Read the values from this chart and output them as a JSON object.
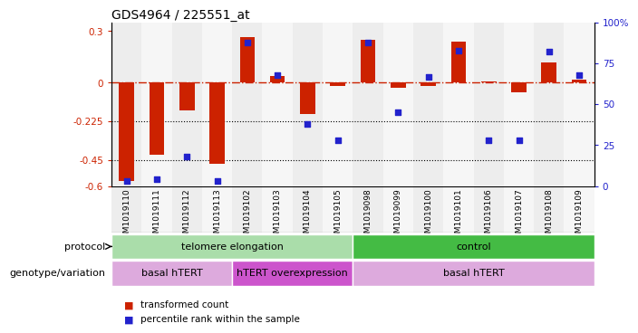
{
  "title": "GDS4964 / 225551_at",
  "samples": [
    "GSM1019110",
    "GSM1019111",
    "GSM1019112",
    "GSM1019113",
    "GSM1019102",
    "GSM1019103",
    "GSM1019104",
    "GSM1019105",
    "GSM1019098",
    "GSM1019099",
    "GSM1019100",
    "GSM1019101",
    "GSM1019106",
    "GSM1019107",
    "GSM1019108",
    "GSM1019109"
  ],
  "bar_values": [
    -0.57,
    -0.42,
    -0.16,
    -0.47,
    0.265,
    0.04,
    -0.18,
    -0.02,
    0.25,
    -0.03,
    -0.02,
    0.24,
    0.01,
    -0.055,
    0.12,
    0.02
  ],
  "scatter_values": [
    3,
    4,
    18,
    3,
    88,
    68,
    38,
    28,
    88,
    45,
    67,
    83,
    28,
    28,
    82,
    68
  ],
  "ylim_left": [
    -0.6,
    0.35
  ],
  "ylim_right": [
    0,
    100
  ],
  "dotted_lines": [
    -0.225,
    -0.45
  ],
  "right_ticks": [
    0,
    25,
    50,
    75,
    100
  ],
  "right_tick_labels": [
    "0",
    "25",
    "50",
    "75",
    "100%"
  ],
  "left_ticks": [
    -0.6,
    -0.45,
    -0.225,
    0,
    0.3
  ],
  "left_tick_labels": [
    "-0.6",
    "-0.45",
    "-0.225",
    "0",
    "0.3"
  ],
  "bar_color": "#CC2200",
  "scatter_color": "#2222CC",
  "col_colors": [
    "#CCCCCC",
    "#DDDDDD"
  ],
  "protocol_groups": [
    {
      "label": "telomere elongation",
      "start": 0,
      "end": 8,
      "color": "#AADDAA"
    },
    {
      "label": "control",
      "start": 8,
      "end": 16,
      "color": "#44BB44"
    }
  ],
  "genotype_groups": [
    {
      "label": "basal hTERT",
      "start": 0,
      "end": 4,
      "color": "#DDAADD"
    },
    {
      "label": "hTERT overexpression",
      "start": 4,
      "end": 8,
      "color": "#CC55CC"
    },
    {
      "label": "basal hTERT",
      "start": 8,
      "end": 16,
      "color": "#DDAADD"
    }
  ],
  "legend_items": [
    {
      "label": "transformed count",
      "color": "#CC2200"
    },
    {
      "label": "percentile rank within the sample",
      "color": "#2222CC"
    }
  ],
  "protocol_label": "protocol",
  "genotype_label": "genotype/variation",
  "tick_label_color_left": "#CC2200",
  "tick_label_color_right": "#2222CC"
}
